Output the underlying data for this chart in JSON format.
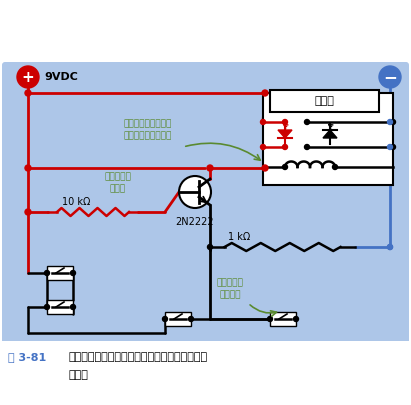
{
  "bg_color": "#adc6e8",
  "red": "#cc0000",
  "blue": "#4472c4",
  "blk": "#000000",
  "grn": "#5a8a30",
  "white": "#ffffff",
  "label_9vdc": "9VDC",
  "label_10k": "10 kΩ",
  "label_1k": "1 kΩ",
  "label_2n2222": "2N2222",
  "label_alarm": "报警器",
  "label_wire": "这根导线在晶体管阵\n断后保持继电器导通",
  "label_trans_off": "晶体管现在\n不导通",
  "label_sensor": "传感器开关\n再次闭合",
  "fig_label": "图 3-81",
  "fig_text1": "传感器开关再次闭合。晶体管不再导通，但报警",
  "fig_text2": "器锁定"
}
